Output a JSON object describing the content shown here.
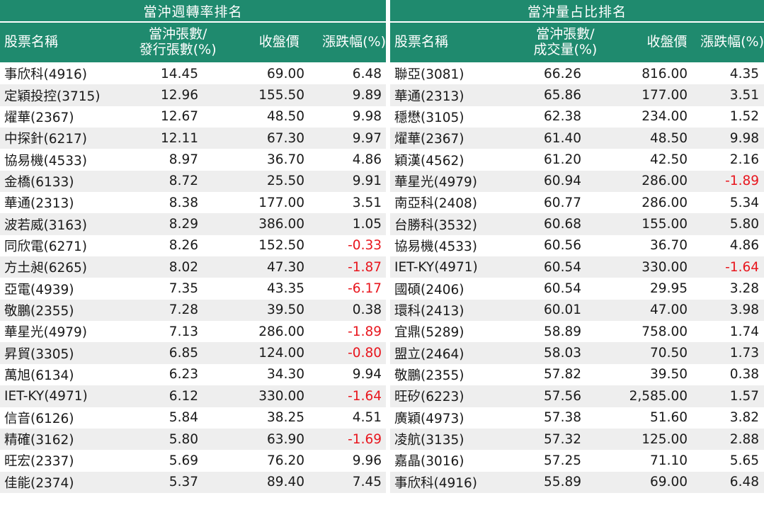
{
  "left_table": {
    "title": "當沖週轉率排名",
    "headers": {
      "name": "股票名稱",
      "ratio_line1": "當沖張數/",
      "ratio_line2": "發行張數(%)",
      "close": "收盤價",
      "change": "漲跌幅(%)"
    },
    "rows": [
      {
        "name": "事欣科(4916)",
        "ratio": "14.45",
        "close": "69.00",
        "change": "6.48"
      },
      {
        "name": "定穎投控(3715)",
        "ratio": "12.96",
        "close": "155.50",
        "change": "9.89"
      },
      {
        "name": "燿華(2367)",
        "ratio": "12.67",
        "close": "48.50",
        "change": "9.98"
      },
      {
        "name": "中探針(6217)",
        "ratio": "12.11",
        "close": "67.30",
        "change": "9.97"
      },
      {
        "name": "協易機(4533)",
        "ratio": "8.97",
        "close": "36.70",
        "change": "4.86"
      },
      {
        "name": "金橋(6133)",
        "ratio": "8.72",
        "close": "25.50",
        "change": "9.91"
      },
      {
        "name": "華通(2313)",
        "ratio": "8.38",
        "close": "177.00",
        "change": "3.51"
      },
      {
        "name": "波若威(3163)",
        "ratio": "8.29",
        "close": "386.00",
        "change": "1.05"
      },
      {
        "name": "同欣電(6271)",
        "ratio": "8.26",
        "close": "152.50",
        "change": "-0.33"
      },
      {
        "name": "方土昶(6265)",
        "ratio": "8.02",
        "close": "47.30",
        "change": "-1.87"
      },
      {
        "name": "亞電(4939)",
        "ratio": "7.35",
        "close": "43.35",
        "change": "-6.17"
      },
      {
        "name": "敬鵬(2355)",
        "ratio": "7.28",
        "close": "39.50",
        "change": "0.38"
      },
      {
        "name": "華星光(4979)",
        "ratio": "7.13",
        "close": "286.00",
        "change": "-1.89"
      },
      {
        "name": "昇貿(3305)",
        "ratio": "6.85",
        "close": "124.00",
        "change": "-0.80"
      },
      {
        "name": "萬旭(6134)",
        "ratio": "6.23",
        "close": "34.30",
        "change": "9.94"
      },
      {
        "name": "IET-KY(4971)",
        "ratio": "6.12",
        "close": "330.00",
        "change": "-1.64"
      },
      {
        "name": "信音(6126)",
        "ratio": "5.84",
        "close": "38.25",
        "change": "4.51"
      },
      {
        "name": "精確(3162)",
        "ratio": "5.80",
        "close": "63.90",
        "change": "-1.69"
      },
      {
        "name": "旺宏(2337)",
        "ratio": "5.69",
        "close": "76.20",
        "change": "9.96"
      },
      {
        "name": "佳能(2374)",
        "ratio": "5.37",
        "close": "89.40",
        "change": "7.45"
      }
    ]
  },
  "right_table": {
    "title": "當沖量占比排名",
    "headers": {
      "name": "股票名稱",
      "ratio_line1": "當沖張數/",
      "ratio_line2": "成交量(%)",
      "close": "收盤價",
      "change": "漲跌幅(%)"
    },
    "rows": [
      {
        "name": "聯亞(3081)",
        "ratio": "66.26",
        "close": "816.00",
        "change": "4.35"
      },
      {
        "name": "華通(2313)",
        "ratio": "65.86",
        "close": "177.00",
        "change": "3.51"
      },
      {
        "name": "穩懋(3105)",
        "ratio": "62.38",
        "close": "234.00",
        "change": "1.52"
      },
      {
        "name": "燿華(2367)",
        "ratio": "61.40",
        "close": "48.50",
        "change": "9.98"
      },
      {
        "name": "穎漢(4562)",
        "ratio": "61.20",
        "close": "42.50",
        "change": "2.16"
      },
      {
        "name": "華星光(4979)",
        "ratio": "60.94",
        "close": "286.00",
        "change": "-1.89"
      },
      {
        "name": "南亞科(2408)",
        "ratio": "60.77",
        "close": "286.00",
        "change": "5.34"
      },
      {
        "name": "台勝科(3532)",
        "ratio": "60.68",
        "close": "155.00",
        "change": "5.80"
      },
      {
        "name": "協易機(4533)",
        "ratio": "60.56",
        "close": "36.70",
        "change": "4.86"
      },
      {
        "name": "IET-KY(4971)",
        "ratio": "60.54",
        "close": "330.00",
        "change": "-1.64"
      },
      {
        "name": "國碩(2406)",
        "ratio": "60.54",
        "close": "29.95",
        "change": "3.28"
      },
      {
        "name": "環科(2413)",
        "ratio": "60.01",
        "close": "47.00",
        "change": "3.98"
      },
      {
        "name": "宜鼎(5289)",
        "ratio": "58.89",
        "close": "758.00",
        "change": "1.74"
      },
      {
        "name": "盟立(2464)",
        "ratio": "58.03",
        "close": "70.50",
        "change": "1.73"
      },
      {
        "name": "敬鵬(2355)",
        "ratio": "57.82",
        "close": "39.50",
        "change": "0.38"
      },
      {
        "name": "旺矽(6223)",
        "ratio": "57.56",
        "close": "2,585.00",
        "change": "1.57"
      },
      {
        "name": "廣穎(4973)",
        "ratio": "57.38",
        "close": "51.60",
        "change": "3.82"
      },
      {
        "name": "凌航(3135)",
        "ratio": "57.32",
        "close": "125.00",
        "change": "2.88"
      },
      {
        "name": "嘉晶(3016)",
        "ratio": "57.25",
        "close": "71.10",
        "change": "5.65"
      },
      {
        "name": "事欣科(4916)",
        "ratio": "55.89",
        "close": "69.00",
        "change": "6.48"
      }
    ]
  },
  "colors": {
    "header_bg": "#1f8a6e",
    "header_text": "#ffffff",
    "stripe": "#eeeeee",
    "negative": "#e8161e"
  }
}
